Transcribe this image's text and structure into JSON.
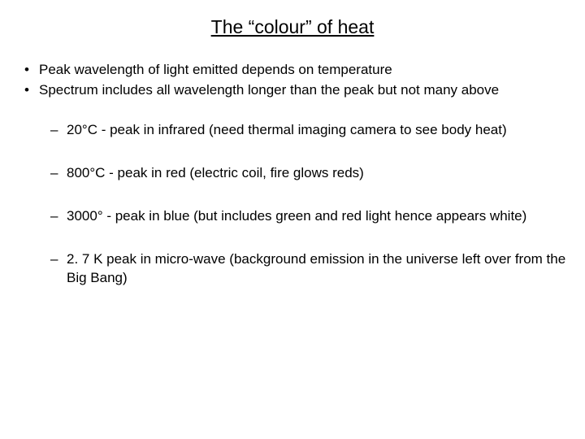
{
  "colors": {
    "background": "#ffffff",
    "title_color": "#000000",
    "text_color": "#000000"
  },
  "typography": {
    "font_family": "Arial",
    "title_fontsize": 23,
    "body_fontsize": 17
  },
  "title": "The “colour” of heat",
  "bullets_lvl1": [
    "Peak wavelength of light emitted depends on temperature",
    "Spectrum includes all wavelength longer than the peak but not many above"
  ],
  "bullets_lvl2": [
    "20°C -  peak in infrared (need thermal imaging camera to see body heat)",
    "800°C - peak in red  (electric coil, fire glows reds)",
    "3000° - peak in blue (but includes green and red light hence appears white)",
    "2. 7 K peak in micro-wave (background emission in the universe left over from the Big Bang)"
  ]
}
